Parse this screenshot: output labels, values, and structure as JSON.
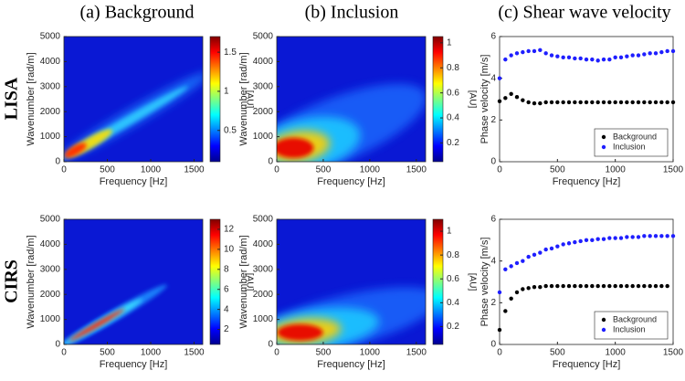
{
  "column_titles": [
    "(a) Background",
    "(b) Inclusion",
    "(c) Shear wave velocity"
  ],
  "row_labels": [
    "LISA",
    "CIRS"
  ],
  "chart_data": [
    {
      "type": "heatmap",
      "xlabel": "Frequency [Hz]",
      "ylabel": "Wavenumber [rad/m]",
      "xlim": [
        0,
        1600
      ],
      "xticks": [
        0,
        500,
        1000,
        1500
      ],
      "ylim": [
        0,
        5000
      ],
      "yticks": [
        0,
        1000,
        2000,
        3000,
        4000,
        5000
      ],
      "colorbar_label": "[AU]",
      "clim": [
        0.1,
        1.7
      ],
      "cticks": [
        0.5,
        1,
        1.5
      ]
    },
    {
      "type": "heatmap",
      "xlabel": "Frequency [Hz]",
      "ylabel": "Wavenumber [rad/m]",
      "xlim": [
        0,
        1600
      ],
      "xticks": [
        0,
        500,
        1000,
        1500
      ],
      "ylim": [
        0,
        5000
      ],
      "yticks": [
        0,
        1000,
        2000,
        3000,
        4000,
        5000
      ],
      "colorbar_label": "[AU]",
      "clim": [
        0.05,
        1.05
      ],
      "cticks": [
        0.2,
        0.4,
        0.6,
        0.8,
        1
      ]
    },
    {
      "type": "scatter",
      "xlabel": "Frequency [Hz]",
      "ylabel": "Phase velocity [m/s]",
      "xlim": [
        0,
        1500
      ],
      "xticks": [
        0,
        500,
        1000,
        1500
      ],
      "ylim": [
        0,
        6
      ],
      "yticks": [
        0,
        2,
        4,
        6
      ],
      "legend": "lower right",
      "series": [
        {
          "name": "Background",
          "color": "#000000",
          "x": [
            0,
            50,
            100,
            150,
            200,
            250,
            300,
            350,
            400,
            450,
            500,
            550,
            600,
            650,
            700,
            750,
            800,
            850,
            900,
            950,
            1000,
            1050,
            1100,
            1150,
            1200,
            1250,
            1300,
            1350,
            1400,
            1450,
            1500
          ],
          "values": [
            2.9,
            3.05,
            3.25,
            3.1,
            2.95,
            2.85,
            2.8,
            2.8,
            2.85,
            2.85,
            2.85,
            2.85,
            2.85,
            2.85,
            2.85,
            2.85,
            2.85,
            2.85,
            2.85,
            2.85,
            2.85,
            2.85,
            2.85,
            2.85,
            2.85,
            2.85,
            2.85,
            2.85,
            2.85,
            2.85,
            2.85
          ]
        },
        {
          "name": "Inclusion",
          "color": "#1f1fff",
          "x": [
            0,
            50,
            100,
            150,
            200,
            250,
            300,
            350,
            400,
            450,
            500,
            550,
            600,
            650,
            700,
            750,
            800,
            850,
            900,
            950,
            1000,
            1050,
            1100,
            1150,
            1200,
            1250,
            1300,
            1350,
            1400,
            1450,
            1500
          ],
          "values": [
            4.0,
            4.9,
            5.1,
            5.2,
            5.25,
            5.3,
            5.3,
            5.35,
            5.2,
            5.1,
            5.05,
            5.0,
            5.0,
            4.95,
            4.95,
            4.9,
            4.9,
            4.85,
            4.9,
            4.9,
            5.0,
            5.0,
            5.05,
            5.1,
            5.1,
            5.15,
            5.2,
            5.2,
            5.25,
            5.3,
            5.3
          ]
        }
      ]
    },
    {
      "type": "heatmap",
      "xlabel": "Frequency [Hz]",
      "ylabel": "Wavenumber [rad/m]",
      "xlim": [
        0,
        1600
      ],
      "xticks": [
        0,
        500,
        1000,
        1500
      ],
      "ylim": [
        0,
        5000
      ],
      "yticks": [
        0,
        1000,
        2000,
        3000,
        4000,
        5000
      ],
      "colorbar_label": "[AU]",
      "clim": [
        0.5,
        13
      ],
      "cticks": [
        2,
        4,
        6,
        8,
        10,
        12
      ]
    },
    {
      "type": "heatmap",
      "xlabel": "Frequency [Hz]",
      "ylabel": "Wavenumber [rad/m]",
      "xlim": [
        0,
        1600
      ],
      "xticks": [
        0,
        500,
        1000,
        1500
      ],
      "ylim": [
        0,
        5000
      ],
      "yticks": [
        0,
        1000,
        2000,
        3000,
        4000,
        5000
      ],
      "colorbar_label": "[AU]",
      "clim": [
        0.05,
        1.1
      ],
      "cticks": [
        0.2,
        0.4,
        0.6,
        0.8,
        1
      ]
    },
    {
      "type": "scatter",
      "xlabel": "Frequency [Hz]",
      "ylabel": "Phase velocity [m/s]",
      "xlim": [
        0,
        1500
      ],
      "xticks": [
        0,
        500,
        1000,
        1500
      ],
      "ylim": [
        0,
        6
      ],
      "yticks": [
        0,
        2,
        4,
        6
      ],
      "legend": "lower right",
      "series": [
        {
          "name": "Background",
          "color": "#000000",
          "x": [
            0,
            50,
            100,
            150,
            200,
            250,
            300,
            350,
            400,
            450,
            500,
            550,
            600,
            650,
            700,
            750,
            800,
            850,
            900,
            950,
            1000,
            1050,
            1100,
            1150,
            1200,
            1250,
            1300,
            1350,
            1400,
            1450
          ],
          "values": [
            0.7,
            1.6,
            2.2,
            2.5,
            2.65,
            2.7,
            2.75,
            2.75,
            2.8,
            2.8,
            2.8,
            2.8,
            2.8,
            2.8,
            2.8,
            2.8,
            2.8,
            2.8,
            2.8,
            2.8,
            2.8,
            2.8,
            2.8,
            2.8,
            2.8,
            2.8,
            2.8,
            2.8,
            2.8,
            2.8
          ]
        },
        {
          "name": "Inclusion",
          "color": "#1f1fff",
          "x": [
            0,
            50,
            100,
            150,
            200,
            250,
            300,
            350,
            400,
            450,
            500,
            550,
            600,
            650,
            700,
            750,
            800,
            850,
            900,
            950,
            1000,
            1050,
            1100,
            1150,
            1200,
            1250,
            1300,
            1350,
            1400,
            1450,
            1500
          ],
          "values": [
            2.5,
            3.6,
            3.75,
            3.9,
            4.0,
            4.2,
            4.3,
            4.4,
            4.55,
            4.6,
            4.7,
            4.8,
            4.85,
            4.9,
            4.95,
            5.0,
            5.0,
            5.05,
            5.05,
            5.1,
            5.1,
            5.1,
            5.15,
            5.15,
            5.15,
            5.2,
            5.2,
            5.2,
            5.2,
            5.2,
            5.2
          ]
        }
      ]
    }
  ]
}
